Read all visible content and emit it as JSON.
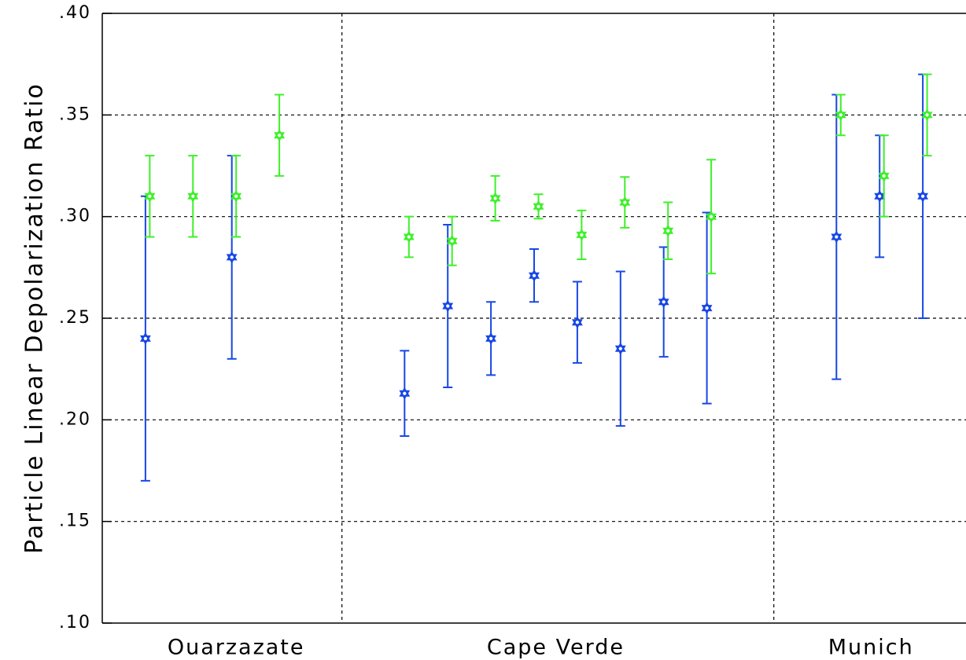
{
  "chart_data": {
    "type": "scatter",
    "ylabel": "Particle Linear Depolarization Ratio",
    "xlim": [
      0,
      20
    ],
    "ylim": [
      0.1,
      0.4
    ],
    "xticks": [
      {
        "value": 3.1,
        "label": "Ouarzazate"
      },
      {
        "value": 10.5,
        "label": "Cape Verde"
      },
      {
        "value": 17.8,
        "label": "Munich"
      }
    ],
    "xgrid": [
      5.55,
      15.55
    ],
    "yticks": [
      {
        "value": 0.1,
        "label": ".10"
      },
      {
        "value": 0.15,
        "label": ".15"
      },
      {
        "value": 0.2,
        "label": ".20"
      },
      {
        "value": 0.25,
        "label": ".25"
      },
      {
        "value": 0.3,
        "label": ".30"
      },
      {
        "value": 0.35,
        "label": ".35"
      },
      {
        "value": 0.4,
        "label": ".40"
      }
    ],
    "grid": true,
    "series": [
      {
        "color": "#1747e6",
        "x": [
          1,
          3,
          7,
          8,
          9,
          10,
          11,
          12,
          13,
          14,
          17,
          18,
          19
        ],
        "values": [
          0.24,
          0.28,
          0.213,
          0.256,
          0.24,
          0.271,
          0.248,
          0.235,
          0.258,
          0.255,
          0.29,
          0.31,
          0.31
        ],
        "errors": [
          0.07,
          0.05,
          0.021,
          0.04,
          0.018,
          0.013,
          0.02,
          0.038,
          0.027,
          0.047,
          0.07,
          0.03,
          0.06
        ]
      },
      {
        "color": "#3ef02a",
        "x": [
          1.1,
          2.1,
          3.1,
          4.1,
          7.1,
          8.1,
          9.1,
          10.1,
          11.1,
          12.1,
          13.1,
          14.1,
          17.1,
          18.1,
          19.1
        ],
        "values": [
          0.31,
          0.31,
          0.31,
          0.34,
          0.29,
          0.288,
          0.309,
          0.305,
          0.291,
          0.307,
          0.293,
          0.3,
          0.35,
          0.32,
          0.35
        ],
        "errors": [
          0.02,
          0.02,
          0.02,
          0.02,
          0.01,
          0.012,
          0.011,
          0.006,
          0.012,
          0.0125,
          0.014,
          0.028,
          0.01,
          0.02,
          0.02
        ]
      }
    ]
  }
}
